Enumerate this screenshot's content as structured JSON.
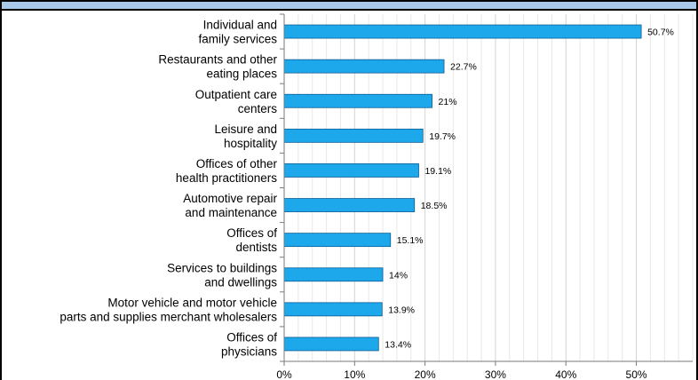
{
  "chart_data": {
    "type": "bar",
    "orientation": "horizontal",
    "title": "",
    "xlabel": "",
    "ylabel": "",
    "categories": [
      "Individual and\nfamily services",
      "Restaurants and other\neating places",
      "Outpatient care\ncenters",
      "Leisure and\nhospitality",
      "Offices of other\nhealth practitioners",
      "Automotive repair\nand maintenance",
      "Offices of\ndentists",
      "Services to buildings\nand dwellings",
      "Motor vehicle and motor vehicle\nparts and supplies merchant wholesalers",
      "Offices of\nphysicians"
    ],
    "values": [
      50.7,
      22.7,
      21,
      19.7,
      19.1,
      18.5,
      15.1,
      14,
      13.9,
      13.4
    ],
    "value_labels": [
      "50.7%",
      "22.7%",
      "21%",
      "19.7%",
      "19.1%",
      "18.5%",
      "15.1%",
      "14%",
      "13.9%",
      "13.4%"
    ],
    "xlim": [
      0,
      58
    ],
    "x_ticks": [
      0,
      10,
      20,
      30,
      40,
      50
    ],
    "x_tick_labels": [
      "0%",
      "10%",
      "20%",
      "30%",
      "40%",
      "50%"
    ],
    "grid": "vertical",
    "legend": "none",
    "bar_color": "#1da8ec",
    "bar_outline": "#0b5d93",
    "title_bar_color": "#a9c8ea"
  }
}
